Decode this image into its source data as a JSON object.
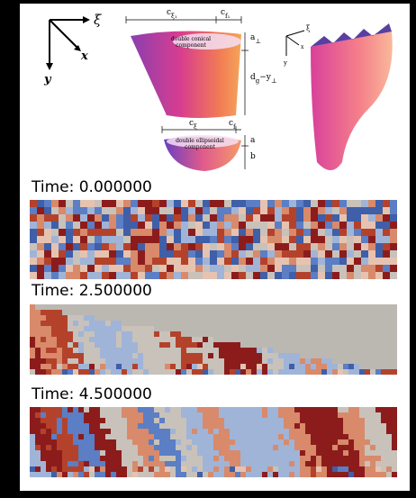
{
  "diagram": {
    "axes": {
      "xi": "ξ",
      "x": "x",
      "y": "y"
    },
    "conical": {
      "label_1": "double conical",
      "label_2": "component",
      "width_xi": {
        "base": "c",
        "sub": "ξ₁"
      },
      "width_f": {
        "base": "c",
        "sub": "f₁"
      },
      "height_a": {
        "base": "a",
        "sub": "⊥"
      },
      "depth": {
        "base": "d",
        "sub": "g",
        "rest": "−y",
        "sub2": "⊥"
      }
    },
    "ellipsoidal": {
      "label_1": "double ellipsoidal",
      "label_2": "component",
      "width_xi": {
        "base": "c",
        "sub": "ξ"
      },
      "width_f": {
        "base": "c",
        "sub": "f"
      },
      "height_a": "a",
      "height_b": "b"
    },
    "inset_axes": {
      "xi": "ξ",
      "x": "x",
      "y": "y"
    }
  },
  "panels": [
    {
      "label": "Time: 0.000000"
    },
    {
      "label": "Time: 2.500000"
    },
    {
      "label": "Time: 4.500000"
    }
  ]
}
